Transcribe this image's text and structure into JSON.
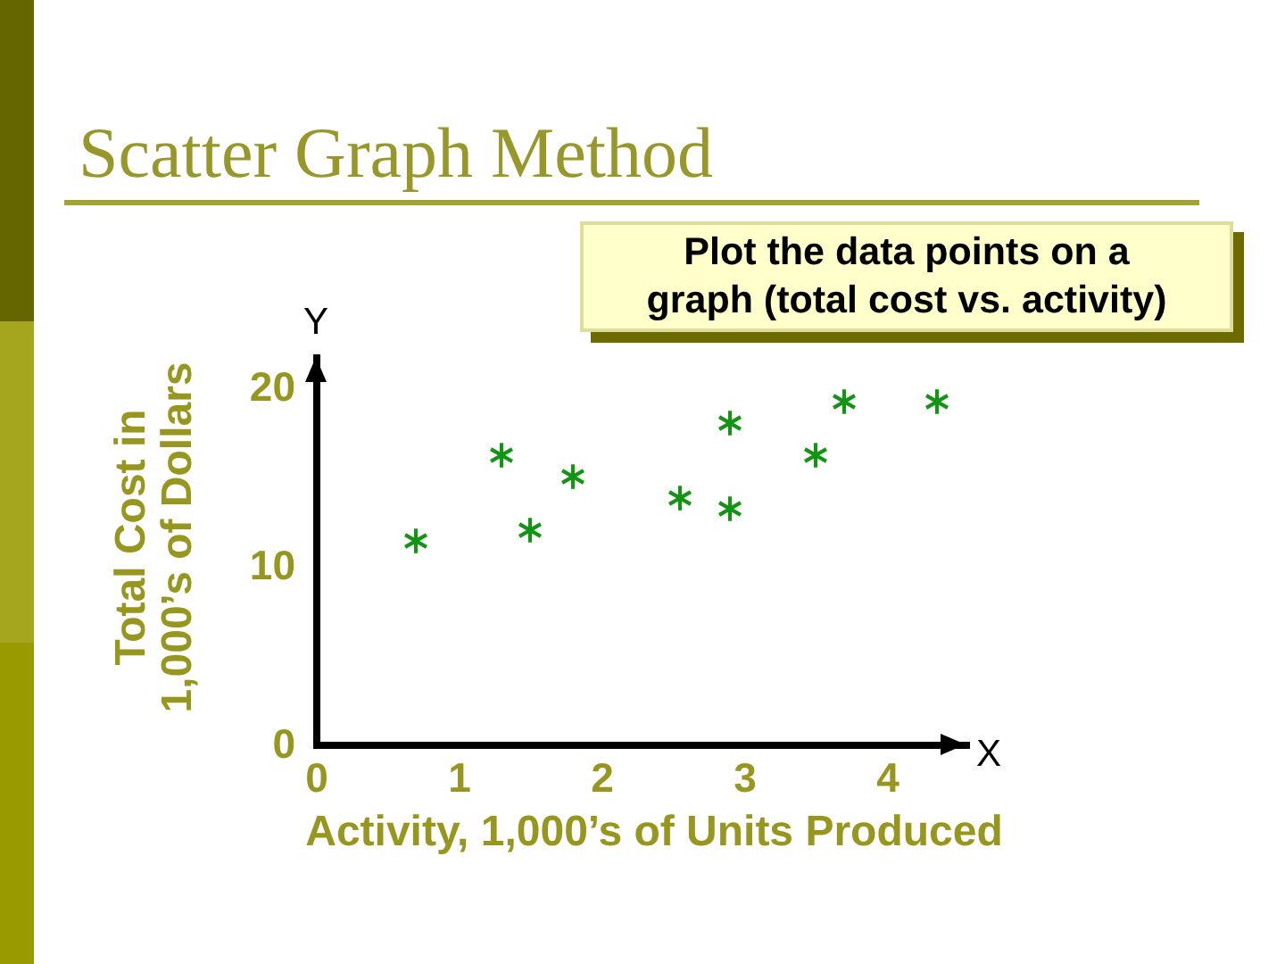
{
  "chart_data": {
    "type": "scatter",
    "title": "Scatter Graph Method",
    "xlabel": "Activity, 1,000’s of Units Produced",
    "ylabel": "Total Cost in 1,000’s of Dollars",
    "annotations": [
      "Plot the data points on a graph (total cost vs. activity)",
      "Y",
      "X"
    ],
    "x": [
      0.7,
      1.3,
      1.5,
      1.8,
      2.55,
      2.9,
      2.9,
      3.5,
      3.7,
      4.35
    ],
    "series": [
      {
        "color": "#139413",
        "values": [
          11.4,
          16.2,
          12.0,
          15.0,
          13.8,
          18.0,
          13.2,
          16.2,
          19.2,
          19.2
        ]
      }
    ],
    "xlim": [
      0,
      4.55
    ],
    "ylim": [
      0,
      21.7
    ],
    "xticks": [
      0,
      1,
      2,
      3,
      4
    ],
    "yticks": [
      0,
      10,
      20
    ],
    "marker": "cross"
  }
}
